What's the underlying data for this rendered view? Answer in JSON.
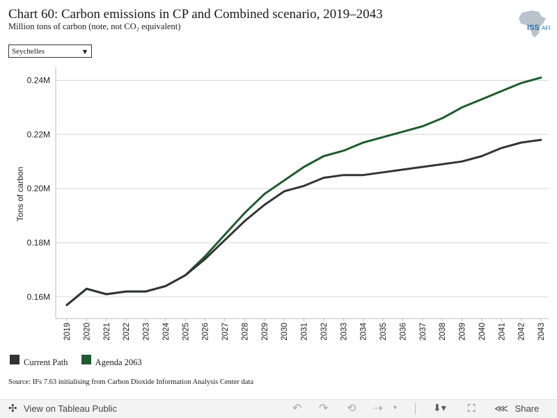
{
  "header": {
    "title": "Chart 60: Carbon emissions in CP and Combined scenario, 2019–2043",
    "subtitle": "Million tons of carbon (note, not CO₂ equivalent)",
    "logo_text": "ISS",
    "logo_suffix": "AFI"
  },
  "filter": {
    "selected": "Seychelles"
  },
  "chart_data": {
    "type": "line",
    "title": "Chart 60: Carbon emissions in CP and Combined scenario, 2019–2043",
    "xlabel": "",
    "ylabel": "Tons of carbon",
    "x": [
      "2019",
      "2020",
      "2021",
      "2022",
      "2023",
      "2024",
      "2025",
      "2026",
      "2027",
      "2028",
      "2029",
      "2030",
      "2031",
      "2032",
      "2033",
      "2034",
      "2035",
      "2036",
      "2037",
      "2038",
      "2039",
      "2040",
      "2041",
      "2042",
      "2043"
    ],
    "ylim": [
      0.152,
      0.245
    ],
    "yticks": [
      0.16,
      0.18,
      0.2,
      0.22,
      0.24
    ],
    "ytick_labels": [
      "0.16M",
      "0.18M",
      "0.20M",
      "0.22M",
      "0.24M"
    ],
    "grid": true,
    "legend_position": "bottom-left",
    "series": [
      {
        "name": "Current Path",
        "color": "#333333",
        "values": [
          0.157,
          0.163,
          0.161,
          0.162,
          0.162,
          0.164,
          0.168,
          0.174,
          0.181,
          0.188,
          0.194,
          0.199,
          0.201,
          0.204,
          0.205,
          0.205,
          0.206,
          0.207,
          0.208,
          0.209,
          0.21,
          0.212,
          0.215,
          0.217,
          0.218
        ]
      },
      {
        "name": "Agenda 2063",
        "color": "#1f5b2e",
        "values": [
          0.157,
          0.163,
          0.161,
          0.162,
          0.162,
          0.164,
          0.168,
          0.175,
          0.183,
          0.191,
          0.198,
          0.203,
          0.208,
          0.212,
          0.214,
          0.217,
          0.219,
          0.221,
          0.223,
          0.226,
          0.23,
          0.233,
          0.236,
          0.239,
          0.241
        ]
      }
    ]
  },
  "legend": {
    "items": [
      {
        "label": "Current Path",
        "color": "#333333"
      },
      {
        "label": "Agenda 2063",
        "color": "#1f5b2e"
      }
    ]
  },
  "source": "Source: IFs 7.63 initialising from Carbon Dioxide Information Analysis Center data",
  "footer": {
    "tableau_label": "View on Tableau Public",
    "share_label": "Share"
  }
}
